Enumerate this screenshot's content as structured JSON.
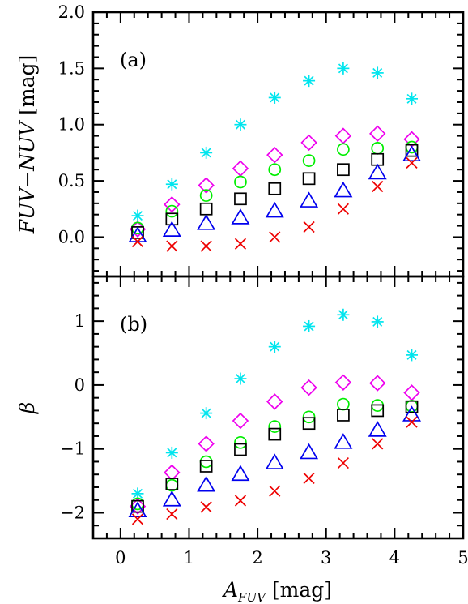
{
  "chart_data": [
    {
      "panel": "(a)",
      "type": "scatter",
      "ylabel": "FUV−NUV [mag]",
      "ylabel_parts": {
        "var": "FUV−NUV",
        "unit": "[mag]"
      },
      "xlim": [
        -0.4,
        5.0
      ],
      "ylim": [
        -0.35,
        2.0
      ],
      "y_major_ticks": [
        0.0,
        0.5,
        1.0,
        1.5,
        2.0
      ],
      "y_tick_labels": [
        "0.0",
        "0.5",
        "1.0",
        "1.5",
        "2.0"
      ],
      "x": [
        0.25,
        0.75,
        1.25,
        1.75,
        2.25,
        2.75,
        3.25,
        3.75,
        4.25
      ],
      "series": [
        {
          "marker": "asterisk",
          "color": "#00e5ee",
          "values": [
            0.19,
            0.47,
            0.75,
            1.0,
            1.24,
            1.39,
            1.5,
            1.46,
            1.23
          ]
        },
        {
          "marker": "diamond",
          "color": "#ee00ee",
          "values": [
            0.07,
            0.29,
            0.46,
            0.61,
            0.73,
            0.84,
            0.9,
            0.92,
            0.87
          ]
        },
        {
          "marker": "circle",
          "color": "#00ee00",
          "values": [
            0.08,
            0.23,
            0.37,
            0.49,
            0.6,
            0.68,
            0.78,
            0.79,
            0.8
          ]
        },
        {
          "marker": "square",
          "color": "#000000",
          "values": [
            0.04,
            0.16,
            0.25,
            0.34,
            0.43,
            0.52,
            0.6,
            0.69,
            0.77
          ]
        },
        {
          "marker": "triangle",
          "color": "#0000ee",
          "values": [
            0.01,
            0.06,
            0.12,
            0.17,
            0.23,
            0.32,
            0.41,
            0.57,
            0.73
          ]
        },
        {
          "marker": "cross",
          "color": "#ee0000",
          "values": [
            -0.04,
            -0.08,
            -0.08,
            -0.06,
            0.0,
            0.09,
            0.25,
            0.45,
            0.66
          ]
        }
      ]
    },
    {
      "panel": "(b)",
      "type": "scatter",
      "ylabel": "β",
      "xlabel": "A_FUV [mag]",
      "xlabel_parts": {
        "var": "A",
        "sub": "FUV",
        "unit": "[mag]"
      },
      "xlim": [
        -0.4,
        5.0
      ],
      "ylim": [
        -2.4,
        1.7
      ],
      "x_major_ticks": [
        0,
        1,
        2,
        3,
        4,
        5
      ],
      "x_tick_labels": [
        "0",
        "1",
        "2",
        "3",
        "4",
        "5"
      ],
      "y_major_ticks": [
        -2,
        -1,
        0,
        1
      ],
      "y_tick_labels": [
        "−2",
        "−1",
        "0",
        "1"
      ],
      "x": [
        0.25,
        0.75,
        1.25,
        1.75,
        2.25,
        2.75,
        3.25,
        3.75,
        4.25
      ],
      "series": [
        {
          "marker": "asterisk",
          "color": "#00e5ee",
          "values": [
            -1.7,
            -1.06,
            -0.44,
            0.1,
            0.6,
            0.92,
            1.1,
            0.99,
            0.47
          ]
        },
        {
          "marker": "diamond",
          "color": "#ee00ee",
          "values": [
            -1.9,
            -1.37,
            -0.92,
            -0.56,
            -0.26,
            -0.04,
            0.04,
            0.03,
            -0.12
          ]
        },
        {
          "marker": "circle",
          "color": "#00ee00",
          "values": [
            -1.86,
            -1.57,
            -1.2,
            -0.9,
            -0.65,
            -0.5,
            -0.3,
            -0.32,
            -0.33
          ]
        },
        {
          "marker": "square",
          "color": "#000000",
          "values": [
            -1.9,
            -1.55,
            -1.27,
            -1.01,
            -0.77,
            -0.6,
            -0.47,
            -0.4,
            -0.34
          ]
        },
        {
          "marker": "triangle",
          "color": "#0000ee",
          "values": [
            -1.97,
            -1.8,
            -1.57,
            -1.4,
            -1.22,
            -1.06,
            -0.9,
            -0.71,
            -0.47
          ]
        },
        {
          "marker": "cross",
          "color": "#ee0000",
          "values": [
            -2.1,
            -2.02,
            -1.91,
            -1.81,
            -1.66,
            -1.46,
            -1.22,
            -0.92,
            -0.58
          ]
        }
      ]
    }
  ]
}
